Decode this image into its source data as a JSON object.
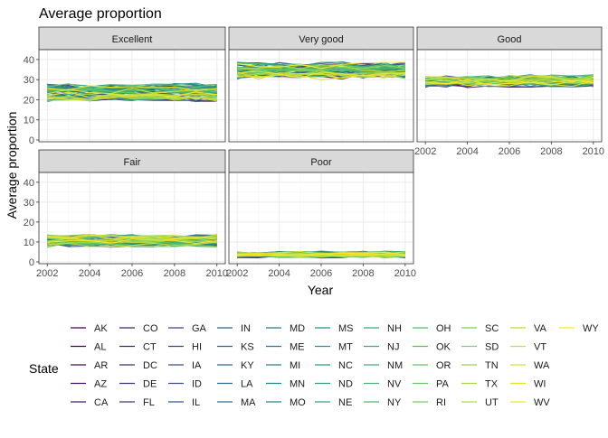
{
  "chart_data": {
    "type": "line",
    "title": "Average proportion",
    "xlabel": "Year",
    "ylabel": "Average proportion",
    "x": [
      2002,
      2003,
      2004,
      2005,
      2006,
      2007,
      2008,
      2009,
      2010
    ],
    "xlim": [
      2002,
      2010
    ],
    "ylim": [
      0,
      44
    ],
    "x_ticks": [
      2002,
      2004,
      2006,
      2008,
      2010
    ],
    "y_ticks": [
      0,
      10,
      20,
      30,
      40
    ],
    "grid": true,
    "legend_placement": "bottom",
    "legend_title": "State",
    "facets": [
      {
        "label": "Excellent",
        "center": 23.5,
        "spread": 3.2,
        "noise": 1.6
      },
      {
        "label": "Very good",
        "center": 34.5,
        "spread": 2.8,
        "noise": 1.8
      },
      {
        "label": "Good",
        "center": 29.5,
        "spread": 2.2,
        "noise": 1.5
      },
      {
        "label": "Fair",
        "center": 10.5,
        "spread": 2.2,
        "noise": 1.2
      },
      {
        "label": "Poor",
        "center": 3.8,
        "spread": 1.0,
        "noise": 0.8
      }
    ],
    "states": [
      "AK",
      "AL",
      "AR",
      "AZ",
      "CA",
      "CO",
      "CT",
      "DC",
      "DE",
      "FL",
      "GA",
      "HI",
      "IA",
      "ID",
      "IL",
      "IN",
      "KS",
      "KY",
      "LA",
      "MA",
      "MD",
      "ME",
      "MI",
      "MN",
      "MO",
      "MS",
      "MT",
      "NC",
      "ND",
      "NE",
      "NH",
      "NJ",
      "NM",
      "NV",
      "NY",
      "OH",
      "OK",
      "OR",
      "PA",
      "RI",
      "SC",
      "SD",
      "TN",
      "TX",
      "UT",
      "VA",
      "VT",
      "WA",
      "WI",
      "WV",
      "WY"
    ],
    "palette": {
      "stops": [
        "#440154",
        "#3b528b",
        "#21908c",
        "#5dc963",
        "#fde725"
      ],
      "panel_strip": "#d9d9d9",
      "panel_border": "#333333",
      "grid_major": "#ebebeb",
      "grid_minor": "#f5f5f5"
    }
  }
}
